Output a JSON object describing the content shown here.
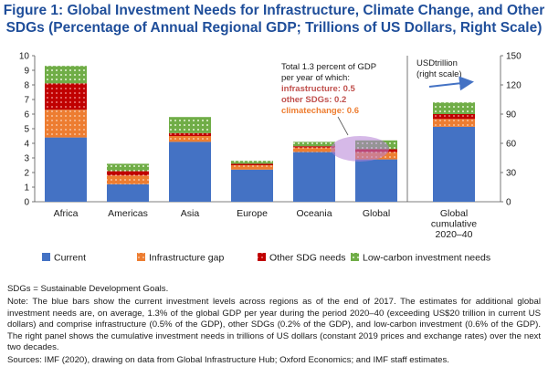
{
  "figure": {
    "title_line1": "Figure 1: Global Investment Needs for Infrastructure, Climate Change, and Other",
    "title_line2": "SDGs (Percentage of Annual Regional GDP; Trillions of US Dollars, Right Scale)"
  },
  "annotation": {
    "line1": "Total 1.3 percent of GDP",
    "line2": "per year of which:",
    "infrastructure": "infrastructure: 0.5",
    "other_sdgs": "other SDGs: 0.2",
    "climatechange": "climatechange: 0.6"
  },
  "right_scale_label": {
    "line1": "USDtrillion",
    "line2": "(right scale)"
  },
  "colors": {
    "current": "#4472c4",
    "infrastructure": "#ed7d31",
    "other_sdg": "#c00000",
    "low_carbon": "#70ad47",
    "title": "#1f4e9a",
    "highlight": "#b57fd6",
    "arrow": "#4472c4"
  },
  "chart_data": {
    "type": "bar",
    "stacked": true,
    "categories": [
      "Africa",
      "Americas",
      "Asia",
      "Europe",
      "Oceania",
      "Global"
    ],
    "series": [
      {
        "name": "Current",
        "values": [
          4.4,
          1.2,
          4.1,
          2.2,
          3.4,
          2.9
        ]
      },
      {
        "name": "Infrastructure gap",
        "values": [
          1.9,
          0.6,
          0.4,
          0.3,
          0.3,
          0.5
        ]
      },
      {
        "name": "Other SDG needs",
        "values": [
          1.8,
          0.3,
          0.2,
          0.1,
          0.1,
          0.2
        ]
      },
      {
        "name": "Low-carbon investment needs",
        "values": [
          1.2,
          0.5,
          1.1,
          0.2,
          0.3,
          0.6
        ]
      }
    ],
    "ylim_left": [
      0,
      10
    ],
    "yticks_left": [
      "0",
      "1",
      "2",
      "3",
      "4",
      "5",
      "6",
      "7",
      "8",
      "9",
      "10"
    ],
    "right_panel": {
      "category_lines": [
        "Global",
        "cumulative",
        "2020–40"
      ],
      "values": [
        77,
        8,
        5,
        12
      ],
      "ylim": [
        0,
        150
      ],
      "yticks": [
        "0",
        "30",
        "60",
        "90",
        "120",
        "150"
      ]
    },
    "legend": {
      "placement": "bottom",
      "labels": [
        "Current",
        "Infrastructure gap",
        "Other SDG needs",
        "Low-carbon investment needs"
      ]
    }
  },
  "notes": {
    "sdgs": "SDGs = Sustainable Development Goals.",
    "note": "Note: The blue bars show the current investment levels across regions as of the end of 2017. The estimates for additional global investment needs are, on average, 1.3% of the global GDP per year during the period 2020–40 (exceeding US$20 trillion in current US dollars) and comprise infrastructure (0.5% of the GDP), other SDGs (0.2% of the GDP), and low-carbon investment (0.6% of the GDP). The right panel shows the cumulative investment needs in trillions of US dollars (constant 2019 prices and exchange rates) over the next two decades.",
    "sources": "Sources: IMF (2020), drawing on data from Global Infrastructure Hub; Oxford Economics; and IMF staff estimates."
  }
}
